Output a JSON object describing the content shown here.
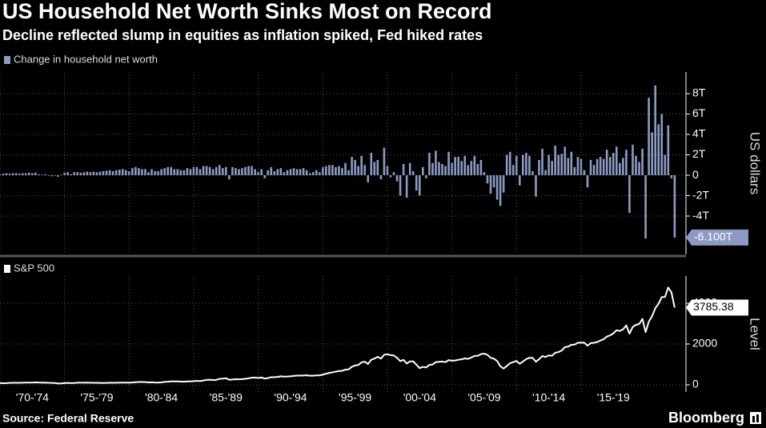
{
  "title": "US Household Net Worth Sinks Most on Record",
  "subtitle": "Decline reflected slump in equities as inflation spiked, Fed hiked rates",
  "source": "Source: Federal Reserve",
  "brand": "Bloomberg",
  "chart_data": [
    {
      "type": "bar",
      "legend": "Change in household net worth",
      "y_axis_label": "US dollars",
      "color": "#8b9bc3",
      "xlim": [
        1970,
        2023
      ],
      "ylim": [
        -7.76,
        10.12
      ],
      "yticks": [
        {
          "value": 8,
          "label": "8T"
        },
        {
          "value": 6,
          "label": "6T"
        },
        {
          "value": 4,
          "label": "4T"
        },
        {
          "value": 2,
          "label": "2T"
        },
        0,
        {
          "value": -2,
          "label": "-2T"
        },
        {
          "value": -4,
          "label": "-4T"
        }
      ],
      "grid": true,
      "x": [
        1970,
        1970.25,
        1970.5,
        1970.75,
        1971,
        1971.25,
        1971.5,
        1971.75,
        1972,
        1972.25,
        1972.5,
        1972.75,
        1973,
        1973.25,
        1973.5,
        1973.75,
        1974,
        1974.25,
        1974.5,
        1974.75,
        1975,
        1975.25,
        1975.5,
        1975.75,
        1976,
        1976.25,
        1976.5,
        1976.75,
        1977,
        1977.25,
        1977.5,
        1977.75,
        1978,
        1978.25,
        1978.5,
        1978.75,
        1979,
        1979.25,
        1979.5,
        1979.75,
        1980,
        1980.25,
        1980.5,
        1980.75,
        1981,
        1981.25,
        1981.5,
        1981.75,
        1982,
        1982.25,
        1982.5,
        1982.75,
        1983,
        1983.25,
        1983.5,
        1983.75,
        1984,
        1984.25,
        1984.5,
        1984.75,
        1985,
        1985.25,
        1985.5,
        1985.75,
        1986,
        1986.25,
        1986.5,
        1986.75,
        1987,
        1987.25,
        1987.5,
        1987.75,
        1988,
        1988.25,
        1988.5,
        1988.75,
        1989,
        1989.25,
        1989.5,
        1989.75,
        1990,
        1990.25,
        1990.5,
        1990.75,
        1991,
        1991.25,
        1991.5,
        1991.75,
        1992,
        1992.25,
        1992.5,
        1992.75,
        1993,
        1993.25,
        1993.5,
        1993.75,
        1994,
        1994.25,
        1994.5,
        1994.75,
        1995,
        1995.25,
        1995.5,
        1995.75,
        1996,
        1996.25,
        1996.5,
        1996.75,
        1997,
        1997.25,
        1997.5,
        1997.75,
        1998,
        1998.25,
        1998.5,
        1998.75,
        1999,
        1999.25,
        1999.5,
        1999.75,
        2000,
        2000.25,
        2000.5,
        2000.75,
        2001,
        2001.25,
        2001.5,
        2001.75,
        2002,
        2002.25,
        2002.5,
        2002.75,
        2003,
        2003.25,
        2003.5,
        2003.75,
        2004,
        2004.25,
        2004.5,
        2004.75,
        2005,
        2005.25,
        2005.5,
        2005.75,
        2006,
        2006.25,
        2006.5,
        2006.75,
        2007,
        2007.25,
        2007.5,
        2007.75,
        2008,
        2008.25,
        2008.5,
        2008.75,
        2009,
        2009.25,
        2009.5,
        2009.75,
        2010,
        2010.25,
        2010.5,
        2010.75,
        2011,
        2011.25,
        2011.5,
        2011.75,
        2012,
        2012.25,
        2012.5,
        2012.75,
        2013,
        2013.25,
        2013.5,
        2013.75,
        2014,
        2014.25,
        2014.5,
        2014.75,
        2015,
        2015.25,
        2015.5,
        2015.75,
        2016,
        2016.25,
        2016.5,
        2016.75,
        2017,
        2017.25,
        2017.5,
        2017.75,
        2018,
        2018.25,
        2018.5,
        2018.75,
        2019,
        2019.25,
        2019.5,
        2019.75,
        2020,
        2020.25,
        2020.5,
        2020.75,
        2021,
        2021.25,
        2021.5,
        2021.75,
        2022,
        2022.25
      ],
      "values": [
        0.1,
        0.15,
        0.2,
        0.15,
        0.2,
        0.2,
        0.15,
        0.2,
        0.2,
        0.25,
        0.2,
        0.25,
        0.1,
        0.05,
        0.1,
        -0.05,
        -0.1,
        -0.05,
        -0.15,
        0.05,
        0.25,
        0.3,
        0.1,
        0.3,
        0.3,
        0.25,
        0.3,
        0.35,
        0.3,
        0.35,
        0.3,
        0.35,
        0.4,
        0.45,
        0.5,
        0.4,
        0.5,
        0.55,
        0.6,
        0.5,
        0.4,
        0.7,
        0.8,
        0.7,
        0.6,
        0.6,
        0.3,
        0.6,
        0.4,
        0.4,
        0.6,
        0.7,
        0.8,
        0.8,
        0.6,
        0.6,
        0.5,
        0.5,
        0.7,
        0.6,
        0.8,
        0.8,
        0.6,
        0.9,
        0.9,
        0.8,
        0.6,
        0.8,
        1.0,
        0.7,
        0.8,
        -0.4,
        0.8,
        0.7,
        0.6,
        0.7,
        0.8,
        0.9,
        0.9,
        0.6,
        0.3,
        0.6,
        -0.3,
        0.5,
        0.8,
        0.4,
        0.6,
        0.7,
        0.3,
        0.5,
        0.6,
        0.7,
        0.6,
        0.6,
        0.7,
        0.5,
        0.2,
        0.3,
        0.5,
        0.3,
        0.8,
        0.9,
        1.0,
        1.0,
        0.8,
        0.9,
        0.7,
        1.2,
        0.5,
        1.8,
        1.5,
        0.9,
        1.9,
        1.0,
        -0.7,
        2.2,
        1.3,
        1.5,
        -0.4,
        2.7,
        0.9,
        -0.2,
        0.3,
        -0.6,
        -2.0,
        1.1,
        -2.2,
        1.2,
        0.4,
        -1.5,
        -2.0,
        0.8,
        -0.3,
        2.2,
        1.2,
        2.4,
        1.3,
        1.1,
        0.9,
        2.3,
        1.2,
        1.8,
        1.8,
        1.4,
        1.9,
        1.0,
        1.4,
        1.9,
        1.1,
        1.5,
        0.3,
        -0.8,
        -1.8,
        -1.2,
        -2.4,
        -3.0,
        -1.7,
        2.0,
        2.3,
        1.0,
        1.9,
        -1.0,
        2.0,
        2.2,
        1.9,
        0.4,
        -2.1,
        1.5,
        2.6,
        0.5,
        2.0,
        1.4,
        2.9,
        2.0,
        2.1,
        2.8,
        1.7,
        2.3,
        0.8,
        1.8,
        1.6,
        0.5,
        -1.2,
        1.5,
        1.0,
        1.6,
        1.8,
        1.6,
        2.5,
        1.8,
        2.2,
        2.8,
        1.2,
        1.7,
        2.5,
        -3.7,
        3.0,
        1.9,
        1.3,
        2.6,
        -6.2,
        7.6,
        4.2,
        8.8,
        5.0,
        6.0,
        2.0,
        4.9,
        -0.3,
        -6.1
      ],
      "value_labels": [
        null,
        null,
        null,
        null,
        null,
        null,
        null,
        null,
        null,
        null,
        null,
        null,
        null,
        null,
        null,
        null,
        null,
        null,
        null,
        null,
        null,
        null,
        null,
        null,
        null,
        null,
        null,
        null,
        null,
        null,
        null,
        null,
        null,
        null,
        null,
        null,
        null,
        null,
        null,
        null,
        null,
        null,
        null,
        null,
        null,
        null,
        null,
        null,
        null,
        null,
        null,
        null,
        null,
        null,
        null,
        null,
        null,
        null,
        null,
        null,
        null,
        null,
        null,
        null,
        null,
        null,
        null,
        null,
        null,
        null,
        null,
        null,
        null,
        null,
        null,
        null,
        null,
        null,
        null,
        null,
        null,
        null,
        null,
        null,
        null,
        null,
        null,
        null,
        null,
        null,
        null,
        null,
        null,
        null,
        null,
        null,
        null,
        null,
        null,
        null,
        null,
        null,
        null,
        null,
        null,
        null,
        null,
        null,
        null,
        null,
        null,
        null,
        null,
        null,
        null,
        null,
        null,
        null,
        null,
        null,
        null,
        null,
        null,
        null,
        null,
        null,
        null,
        null,
        null,
        null,
        null,
        null,
        null,
        null,
        null,
        null,
        null,
        null,
        null,
        null,
        null,
        null,
        null,
        null,
        null,
        null,
        null,
        null,
        null,
        null,
        null,
        null,
        null,
        null,
        null,
        null,
        null,
        null,
        null,
        null,
        null,
        null,
        null,
        null,
        null,
        null,
        null,
        null,
        null,
        null,
        null,
        null,
        null,
        null,
        null,
        null,
        null,
        null,
        null,
        null,
        null,
        null,
        null,
        null,
        null,
        null,
        null,
        null,
        null,
        null,
        null,
        null,
        null,
        null,
        null,
        null,
        null,
        null,
        null,
        null,
        null,
        null,
        null,
        null,
        null,
        null,
        null,
        null,
        null,
        "-6.100T"
      ]
    },
    {
      "type": "line",
      "legend": "S&P 500",
      "y_axis_label": "Level",
      "color": "#ffffff",
      "xlim": [
        1970,
        2023
      ],
      "ylim": [
        -353,
        5333
      ],
      "yticks": [
        4000,
        2000,
        0
      ],
      "grid": true,
      "xticks": [
        {
          "value": 1970,
          "label": "'70-'74"
        },
        {
          "value": 1975,
          "label": "'75-'79"
        },
        {
          "value": 1980,
          "label": "'80-'84"
        },
        {
          "value": 1985,
          "label": "'85-'89"
        },
        {
          "value": 1990,
          "label": "'90-'94"
        },
        {
          "value": 1995,
          "label": "'95-'99"
        },
        {
          "value": 2000,
          "label": "'00-'04"
        },
        {
          "value": 2005,
          "label": "'05-'09"
        },
        {
          "value": 2010,
          "label": "'10-'14"
        },
        {
          "value": 2015,
          "label": "'15-'19"
        }
      ],
      "x": [
        1970,
        1970.25,
        1970.5,
        1970.75,
        1971,
        1971.25,
        1971.5,
        1971.75,
        1972,
        1972.25,
        1972.5,
        1972.75,
        1973,
        1973.25,
        1973.5,
        1973.75,
        1974,
        1974.25,
        1974.5,
        1974.75,
        1975,
        1975.25,
        1975.5,
        1975.75,
        1976,
        1976.25,
        1976.5,
        1976.75,
        1977,
        1977.25,
        1977.5,
        1977.75,
        1978,
        1978.25,
        1978.5,
        1978.75,
        1979,
        1979.25,
        1979.5,
        1979.75,
        1980,
        1980.25,
        1980.5,
        1980.75,
        1981,
        1981.25,
        1981.5,
        1981.75,
        1982,
        1982.25,
        1982.5,
        1982.75,
        1983,
        1983.25,
        1983.5,
        1983.75,
        1984,
        1984.25,
        1984.5,
        1984.75,
        1985,
        1985.25,
        1985.5,
        1985.75,
        1986,
        1986.25,
        1986.5,
        1986.75,
        1987,
        1987.25,
        1987.5,
        1987.75,
        1988,
        1988.25,
        1988.5,
        1988.75,
        1989,
        1989.25,
        1989.5,
        1989.75,
        1990,
        1990.25,
        1990.5,
        1990.75,
        1991,
        1991.25,
        1991.5,
        1991.75,
        1992,
        1992.25,
        1992.5,
        1992.75,
        1993,
        1993.25,
        1993.5,
        1993.75,
        1994,
        1994.25,
        1994.5,
        1994.75,
        1995,
        1995.25,
        1995.5,
        1995.75,
        1996,
        1996.25,
        1996.5,
        1996.75,
        1997,
        1997.25,
        1997.5,
        1997.75,
        1998,
        1998.25,
        1998.5,
        1998.75,
        1999,
        1999.25,
        1999.5,
        1999.75,
        2000,
        2000.25,
        2000.5,
        2000.75,
        2001,
        2001.25,
        2001.5,
        2001.75,
        2002,
        2002.25,
        2002.5,
        2002.75,
        2003,
        2003.25,
        2003.5,
        2003.75,
        2004,
        2004.25,
        2004.5,
        2004.75,
        2005,
        2005.25,
        2005.5,
        2005.75,
        2006,
        2006.25,
        2006.5,
        2006.75,
        2007,
        2007.25,
        2007.5,
        2007.75,
        2008,
        2008.25,
        2008.5,
        2008.75,
        2009,
        2009.25,
        2009.5,
        2009.75,
        2010,
        2010.25,
        2010.5,
        2010.75,
        2011,
        2011.25,
        2011.5,
        2011.75,
        2012,
        2012.25,
        2012.5,
        2012.75,
        2013,
        2013.25,
        2013.5,
        2013.75,
        2014,
        2014.25,
        2014.5,
        2014.75,
        2015,
        2015.25,
        2015.5,
        2015.75,
        2016,
        2016.25,
        2016.5,
        2016.75,
        2017,
        2017.25,
        2017.5,
        2017.75,
        2018,
        2018.25,
        2018.5,
        2018.75,
        2019,
        2019.25,
        2019.5,
        2019.75,
        2020,
        2020.25,
        2020.5,
        2020.75,
        2021,
        2021.25,
        2021.5,
        2021.75,
        2022,
        2022.25
      ],
      "values": [
        89,
        73,
        84,
        92,
        100,
        99,
        98,
        102,
        107,
        107,
        110,
        118,
        112,
        104,
        108,
        98,
        94,
        86,
        64,
        69,
        83,
        95,
        84,
        90,
        102,
        104,
        105,
        107,
        98,
        100,
        96,
        95,
        89,
        95,
        102,
        96,
        102,
        103,
        109,
        108,
        102,
        115,
        125,
        136,
        136,
        131,
        116,
        122,
        112,
        110,
        120,
        141,
        153,
        168,
        166,
        165,
        159,
        153,
        166,
        167,
        181,
        192,
        182,
        211,
        238,
        250,
        231,
        242,
        291,
        304,
        321,
        247,
        258,
        273,
        271,
        277,
        294,
        317,
        349,
        353,
        339,
        358,
        306,
        330,
        375,
        371,
        387,
        417,
        403,
        408,
        417,
        435,
        451,
        450,
        458,
        466,
        445,
        444,
        462,
        459,
        500,
        544,
        584,
        615,
        645,
        670,
        687,
        740,
        757,
        885,
        947,
        970,
        1101,
        1133,
        1017,
        1229,
        1286,
        1372,
        1282,
        1469,
        1498,
        1454,
        1436,
        1320,
        1160,
        1224,
        1040,
        1148,
        1147,
        989,
        815,
        879,
        848,
        974,
        995,
        1111,
        1126,
        1140,
        1114,
        1211,
        1180,
        1191,
        1228,
        1248,
        1294,
        1270,
        1335,
        1418,
        1420,
        1503,
        1526,
        1468,
        1322,
        1280,
        1166,
        903,
        797,
        919,
        1057,
        1115,
        1169,
        1030,
        1141,
        1257,
        1325,
        1320,
        1131,
        1257,
        1408,
        1362,
        1440,
        1426,
        1569,
        1606,
        1681,
        1848,
        1872,
        1960,
        1972,
        2058,
        2067,
        2063,
        1920,
        2043,
        2059,
        2098,
        2168,
        2238,
        2362,
        2423,
        2519,
        2673,
        2640,
        2718,
        2913,
        2506,
        2834,
        2941,
        2976,
        3230,
        2584,
        3100,
        3363,
        3756,
        3972,
        4297,
        4307,
        4766,
        4530,
        3785.38
      ]
    }
  ]
}
